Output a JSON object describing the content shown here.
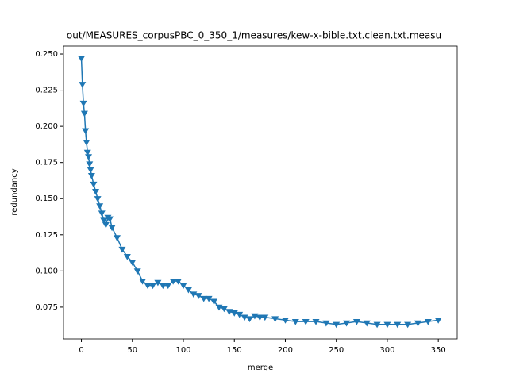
{
  "chart_data": {
    "type": "line",
    "title": "out/MEASURES_corpusPBC_0_350_1/measures/kew-x-bible.txt.clean.txt.measu",
    "x_label": "merge",
    "y_label": "redundancy",
    "x": [
      0,
      1,
      2,
      3,
      4,
      5,
      6,
      7,
      8,
      9,
      10,
      12,
      14,
      16,
      18,
      20,
      22,
      24,
      26,
      28,
      30,
      35,
      40,
      45,
      50,
      55,
      60,
      65,
      70,
      75,
      80,
      85,
      90,
      95,
      100,
      105,
      110,
      115,
      120,
      125,
      130,
      135,
      140,
      145,
      150,
      155,
      160,
      165,
      170,
      175,
      180,
      190,
      200,
      210,
      220,
      230,
      240,
      250,
      260,
      270,
      280,
      290,
      300,
      310,
      320,
      330,
      340,
      350
    ],
    "series": [
      {
        "color": "#1f77b4",
        "marker": "triangle-down",
        "values": [
          0.247,
          0.229,
          0.216,
          0.209,
          0.197,
          0.189,
          0.182,
          0.179,
          0.174,
          0.17,
          0.166,
          0.16,
          0.155,
          0.15,
          0.145,
          0.14,
          0.135,
          0.132,
          0.137,
          0.136,
          0.13,
          0.123,
          0.115,
          0.11,
          0.106,
          0.1,
          0.093,
          0.09,
          0.09,
          0.092,
          0.09,
          0.09,
          0.093,
          0.093,
          0.09,
          0.087,
          0.084,
          0.083,
          0.081,
          0.081,
          0.079,
          0.075,
          0.074,
          0.072,
          0.071,
          0.07,
          0.068,
          0.067,
          0.069,
          0.068,
          0.068,
          0.067,
          0.066,
          0.065,
          0.065,
          0.065,
          0.064,
          0.063,
          0.064,
          0.065,
          0.064,
          0.063,
          0.063,
          0.063,
          0.063,
          0.064,
          0.065,
          0.066
        ]
      }
    ],
    "xlim": [
      -17.55,
      368.55
    ],
    "xticks": [
      0,
      50,
      100,
      150,
      200,
      250,
      300,
      350
    ],
    "ylim": [
      0.053,
      0.2555
    ],
    "yticks": [
      0.075,
      {
        "value": 0.1,
        "label": "0.100"
      },
      0.125,
      {
        "value": 0.15,
        "label": "0.150"
      },
      0.175,
      {
        "value": 0.2,
        "label": "0.200"
      },
      0.225,
      {
        "value": 0.25,
        "label": "0.250"
      }
    ],
    "grid": false
  }
}
